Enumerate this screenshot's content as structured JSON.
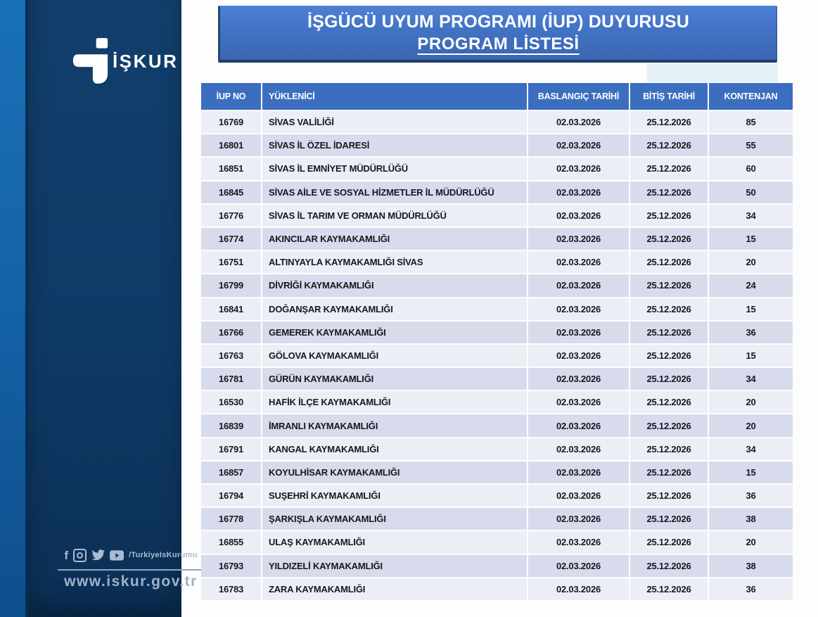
{
  "sidebar": {
    "logo_text": "İŞKUR",
    "social": {
      "icons": [
        "facebook-icon",
        "instagram-icon",
        "twitter-icon",
        "youtube-icon"
      ],
      "handle": "/TurkiyeIsKurumu"
    },
    "website": "www.iskur.gov.tr"
  },
  "banner": {
    "line1": "İŞGÜCÜ UYUM PROGRAMI (İUP) DUYURUSU",
    "line2": "PROGRAM LİSTESİ"
  },
  "table": {
    "columns": [
      "İUP NO",
      "YÜKLENİCİ",
      "BASLANGIÇ TARİHİ",
      "BİTİŞ TARİHİ",
      "KONTENJAN"
    ],
    "rows": [
      [
        "16769",
        "SİVAS VALİLİĞİ",
        "02.03.2026",
        "25.12.2026",
        "85"
      ],
      [
        "16801",
        "SİVAS İL ÖZEL İDARESİ",
        "02.03.2026",
        "25.12.2026",
        "55"
      ],
      [
        "16851",
        "SİVAS İL EMNİYET MÜDÜRLÜĞÜ",
        "02.03.2026",
        "25.12.2026",
        "60"
      ],
      [
        "16845",
        "SİVAS AİLE VE SOSYAL HİZMETLER İL MÜDÜRLÜĞÜ",
        "02.03.2026",
        "25.12.2026",
        "50"
      ],
      [
        "16776",
        "SİVAS İL TARIM VE ORMAN MÜDÜRLÜĞÜ",
        "02.03.2026",
        "25.12.2026",
        "34"
      ],
      [
        "16774",
        "AKINCILAR KAYMAKAMLIĞI",
        "02.03.2026",
        "25.12.2026",
        "15"
      ],
      [
        "16751",
        "ALTINYAYLA KAYMAKAMLIĞI SİVAS",
        "02.03.2026",
        "25.12.2026",
        "20"
      ],
      [
        "16799",
        "DİVRİĞİ KAYMAKAMLIĞI",
        "02.03.2026",
        "25.12.2026",
        "24"
      ],
      [
        "16841",
        "DOĞANŞAR KAYMAKAMLIĞI",
        "02.03.2026",
        "25.12.2026",
        "15"
      ],
      [
        "16766",
        "GEMEREK KAYMAKAMLIĞI",
        "02.03.2026",
        "25.12.2026",
        "36"
      ],
      [
        "16763",
        "GÖLOVA KAYMAKAMLIĞI",
        "02.03.2026",
        "25.12.2026",
        "15"
      ],
      [
        "16781",
        "GÜRÜN KAYMAKAMLIĞI",
        "02.03.2026",
        "25.12.2026",
        "34"
      ],
      [
        "16530",
        "HAFİK İLÇE KAYMAKAMLIĞI",
        "02.03.2026",
        "25.12.2026",
        "20"
      ],
      [
        "16839",
        "İMRANLI KAYMAKAMLIĞI",
        "02.03.2026",
        "25.12.2026",
        "20"
      ],
      [
        "16791",
        "KANGAL KAYMAKAMLIĞI",
        "02.03.2026",
        "25.12.2026",
        "34"
      ],
      [
        "16857",
        "KOYULHİSAR KAYMAKAMLIĞI",
        "02.03.2026",
        "25.12.2026",
        "15"
      ],
      [
        "16794",
        "SUŞEHRİ KAYMAKAMLIĞI",
        "02.03.2026",
        "25.12.2026",
        "36"
      ],
      [
        "16778",
        "ŞARKIŞLA KAYMAKAMLIĞI",
        "02.03.2026",
        "25.12.2026",
        "38"
      ],
      [
        "16855",
        "ULAŞ KAYMAKAMLIĞI",
        "02.03.2026",
        "25.12.2026",
        "20"
      ],
      [
        "16793",
        "YILDIZELİ KAYMAKAMLIĞI",
        "02.03.2026",
        "25.12.2026",
        "38"
      ],
      [
        "16783",
        "ZARA KAYMAKAMLIĞI",
        "02.03.2026",
        "25.12.2026",
        "36"
      ]
    ]
  },
  "colors": {
    "sidebar_navy": "#0f3a66",
    "sidebar_strip": "#1563a8",
    "banner_blue": "#4272c4",
    "table_header_blue": "#3c6ebf",
    "row_light": "#eceef6",
    "row_dark": "#d7dbeb",
    "footer_text": "#a9bbd0"
  }
}
